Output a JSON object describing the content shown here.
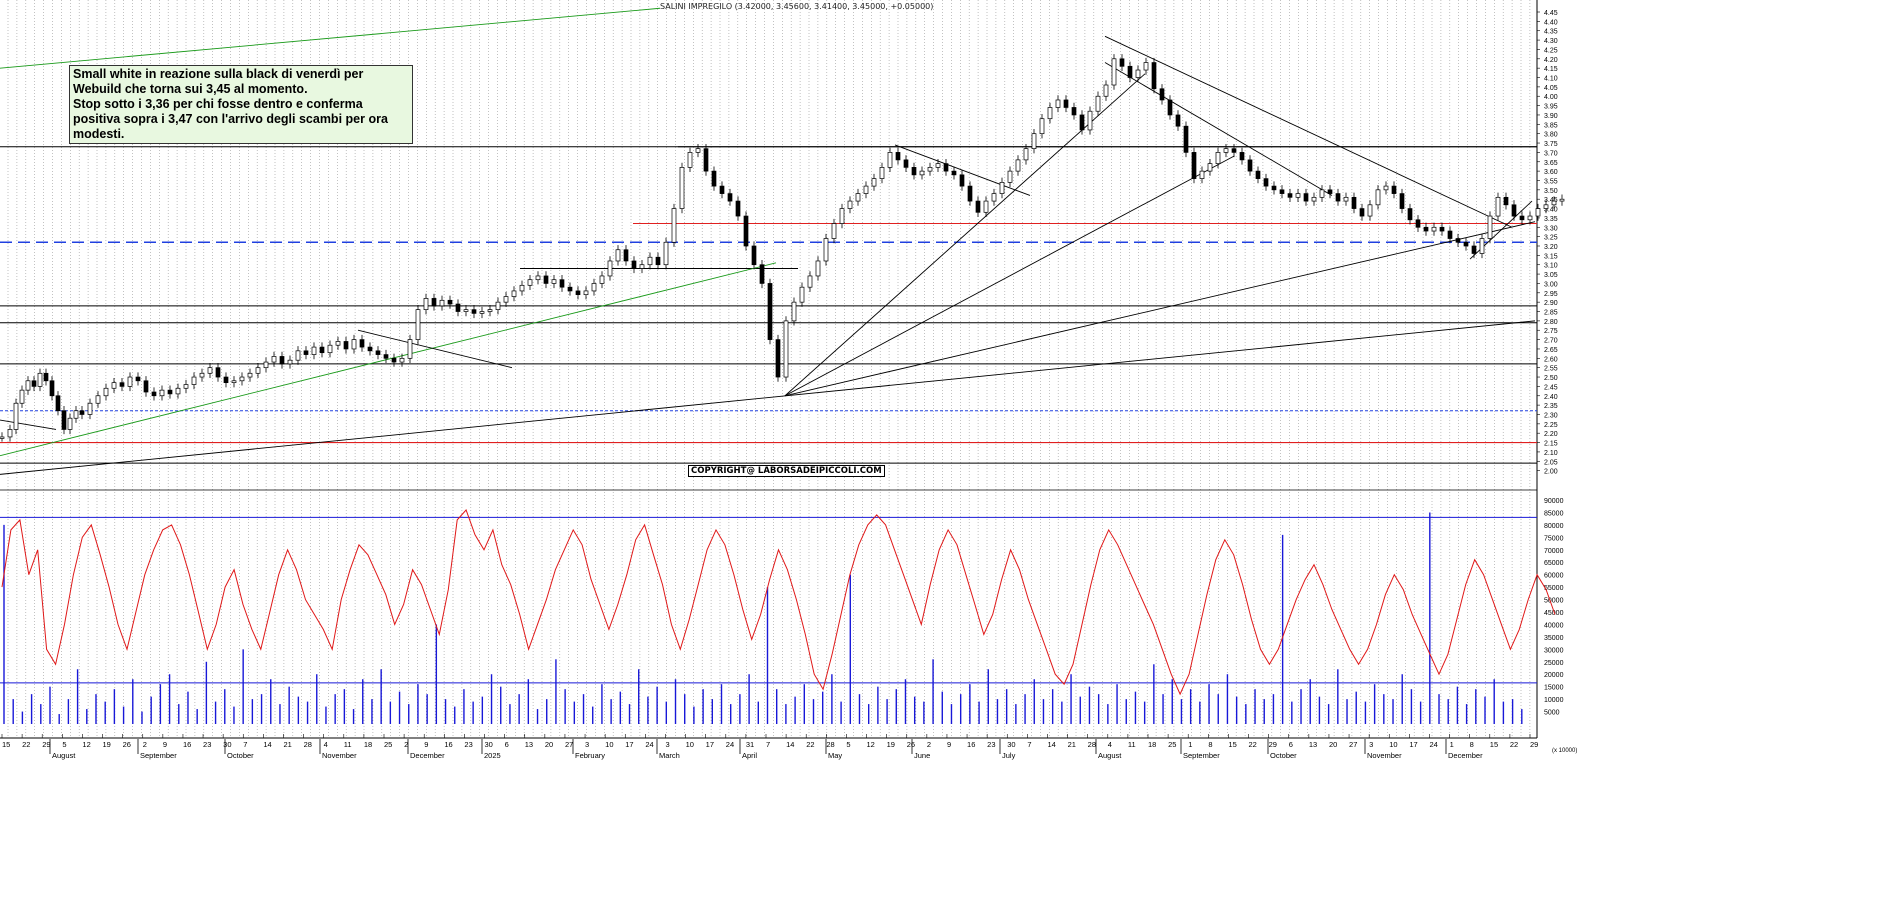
{
  "title": "SALINI IMPREGILO (3.42000, 3.45600, 3.41400, 3.45000, +0.05000)",
  "note": {
    "lines": [
      "Small white in reazione sulla black di venerdì per Webuild che torna sui 3,45 al momento.",
      "Stop sotto i 3,36 per chi fosse dentro e  conferma positiva sopra i 3,47 con l'arrivo degli scambi per ora modesti."
    ]
  },
  "copyright": "COPYRIGHT@ LABORSADEIPICCOLI.COM",
  "colors": {
    "candle_body": "#000000",
    "grid": "#9a9a9a",
    "green_trend": "#1a9a1a",
    "red_level": "#e02020",
    "blue_level": "#2040e0",
    "oscillator": "#e01818",
    "volume": "#1818d8",
    "background": "#ffffff"
  },
  "chart_data": [
    {
      "type": "candlestick",
      "ylim": [
        1.95,
        4.45
      ],
      "y_ticks": [
        "4.45",
        "4.40",
        "4.35",
        "4.30",
        "4.25",
        "4.20",
        "4.15",
        "4.10",
        "4.05",
        "4.00",
        "3.95",
        "3.90",
        "3.85",
        "3.80",
        "3.75",
        "3.70",
        "3.65",
        "3.60",
        "3.55",
        "3.50",
        "3.45",
        "3.40",
        "3.35",
        "3.30",
        "3.25",
        "3.20",
        "3.15",
        "3.10",
        "3.05",
        "3.00",
        "2.95",
        "2.90",
        "2.85",
        "2.80",
        "2.75",
        "2.70",
        "2.65",
        "2.60",
        "2.55",
        "2.50",
        "2.45",
        "2.40",
        "2.35",
        "2.30",
        "2.25",
        "2.20",
        "2.15",
        "2.10",
        "2.05",
        "2.00"
      ],
      "price_path": [
        [
          0,
          2.18
        ],
        [
          8,
          2.22
        ],
        [
          14,
          2.36
        ],
        [
          20,
          2.43
        ],
        [
          26,
          2.48
        ],
        [
          32,
          2.45
        ],
        [
          38,
          2.52
        ],
        [
          44,
          2.48
        ],
        [
          50,
          2.4
        ],
        [
          56,
          2.32
        ],
        [
          62,
          2.22
        ],
        [
          68,
          2.28
        ],
        [
          74,
          2.32
        ],
        [
          80,
          2.3
        ],
        [
          88,
          2.36
        ],
        [
          96,
          2.4
        ],
        [
          104,
          2.44
        ],
        [
          112,
          2.47
        ],
        [
          120,
          2.45
        ],
        [
          128,
          2.5
        ],
        [
          136,
          2.48
        ],
        [
          144,
          2.42
        ],
        [
          152,
          2.4
        ],
        [
          160,
          2.43
        ],
        [
          168,
          2.41
        ],
        [
          176,
          2.44
        ],
        [
          184,
          2.46
        ],
        [
          192,
          2.5
        ],
        [
          200,
          2.52
        ],
        [
          208,
          2.55
        ],
        [
          216,
          2.5
        ],
        [
          224,
          2.47
        ],
        [
          232,
          2.48
        ],
        [
          240,
          2.5
        ],
        [
          248,
          2.52
        ],
        [
          256,
          2.55
        ],
        [
          264,
          2.58
        ],
        [
          272,
          2.61
        ],
        [
          280,
          2.57
        ],
        [
          288,
          2.59
        ],
        [
          296,
          2.64
        ],
        [
          304,
          2.62
        ],
        [
          312,
          2.66
        ],
        [
          320,
          2.63
        ],
        [
          328,
          2.67
        ],
        [
          336,
          2.69
        ],
        [
          344,
          2.65
        ],
        [
          352,
          2.7
        ],
        [
          360,
          2.66
        ],
        [
          368,
          2.64
        ],
        [
          376,
          2.62
        ],
        [
          384,
          2.6
        ],
        [
          392,
          2.58
        ],
        [
          400,
          2.6
        ],
        [
          408,
          2.7
        ],
        [
          416,
          2.86
        ],
        [
          424,
          2.92
        ],
        [
          432,
          2.88
        ],
        [
          440,
          2.91
        ],
        [
          448,
          2.89
        ],
        [
          456,
          2.85
        ],
        [
          464,
          2.86
        ],
        [
          472,
          2.84
        ],
        [
          480,
          2.85
        ],
        [
          488,
          2.86
        ],
        [
          496,
          2.9
        ],
        [
          504,
          2.93
        ],
        [
          512,
          2.96
        ],
        [
          520,
          2.99
        ],
        [
          528,
          3.02
        ],
        [
          536,
          3.04
        ],
        [
          544,
          3.0
        ],
        [
          552,
          3.02
        ],
        [
          560,
          2.98
        ],
        [
          568,
          2.96
        ],
        [
          576,
          2.94
        ],
        [
          584,
          2.96
        ],
        [
          592,
          3.0
        ],
        [
          600,
          3.04
        ],
        [
          608,
          3.12
        ],
        [
          616,
          3.18
        ],
        [
          624,
          3.12
        ],
        [
          632,
          3.08
        ],
        [
          640,
          3.1
        ],
        [
          648,
          3.14
        ],
        [
          656,
          3.1
        ],
        [
          664,
          3.22
        ],
        [
          672,
          3.4
        ],
        [
          680,
          3.62
        ],
        [
          688,
          3.7
        ],
        [
          696,
          3.72
        ],
        [
          704,
          3.6
        ],
        [
          712,
          3.52
        ],
        [
          720,
          3.48
        ],
        [
          728,
          3.44
        ],
        [
          736,
          3.36
        ],
        [
          744,
          3.2
        ],
        [
          752,
          3.1
        ],
        [
          760,
          3.0
        ],
        [
          768,
          2.7
        ],
        [
          776,
          2.5
        ],
        [
          784,
          2.8
        ],
        [
          792,
          2.9
        ],
        [
          800,
          2.98
        ],
        [
          808,
          3.04
        ],
        [
          816,
          3.12
        ],
        [
          824,
          3.24
        ],
        [
          832,
          3.32
        ],
        [
          840,
          3.4
        ],
        [
          848,
          3.44
        ],
        [
          856,
          3.48
        ],
        [
          864,
          3.52
        ],
        [
          872,
          3.56
        ],
        [
          880,
          3.62
        ],
        [
          888,
          3.7
        ],
        [
          896,
          3.66
        ],
        [
          904,
          3.62
        ],
        [
          912,
          3.58
        ],
        [
          920,
          3.6
        ],
        [
          928,
          3.62
        ],
        [
          936,
          3.64
        ],
        [
          944,
          3.6
        ],
        [
          952,
          3.58
        ],
        [
          960,
          3.52
        ],
        [
          968,
          3.44
        ],
        [
          976,
          3.38
        ],
        [
          984,
          3.44
        ],
        [
          992,
          3.48
        ],
        [
          1000,
          3.54
        ],
        [
          1008,
          3.6
        ],
        [
          1016,
          3.66
        ],
        [
          1024,
          3.72
        ],
        [
          1032,
          3.8
        ],
        [
          1040,
          3.88
        ],
        [
          1048,
          3.94
        ],
        [
          1056,
          3.98
        ],
        [
          1064,
          3.94
        ],
        [
          1072,
          3.9
        ],
        [
          1080,
          3.82
        ],
        [
          1088,
          3.92
        ],
        [
          1096,
          4.0
        ],
        [
          1104,
          4.06
        ],
        [
          1112,
          4.2
        ],
        [
          1120,
          4.16
        ],
        [
          1128,
          4.1
        ],
        [
          1136,
          4.14
        ],
        [
          1144,
          4.18
        ],
        [
          1152,
          4.04
        ],
        [
          1160,
          3.98
        ],
        [
          1168,
          3.9
        ],
        [
          1176,
          3.84
        ],
        [
          1184,
          3.7
        ],
        [
          1192,
          3.56
        ],
        [
          1200,
          3.6
        ],
        [
          1208,
          3.64
        ],
        [
          1216,
          3.7
        ],
        [
          1224,
          3.72
        ],
        [
          1232,
          3.7
        ],
        [
          1240,
          3.66
        ],
        [
          1248,
          3.6
        ],
        [
          1256,
          3.56
        ],
        [
          1264,
          3.52
        ],
        [
          1272,
          3.5
        ],
        [
          1280,
          3.48
        ],
        [
          1288,
          3.46
        ],
        [
          1296,
          3.48
        ],
        [
          1304,
          3.44
        ],
        [
          1312,
          3.46
        ],
        [
          1320,
          3.5
        ],
        [
          1328,
          3.48
        ],
        [
          1336,
          3.44
        ],
        [
          1344,
          3.46
        ],
        [
          1352,
          3.4
        ],
        [
          1360,
          3.36
        ],
        [
          1368,
          3.42
        ],
        [
          1376,
          3.5
        ],
        [
          1384,
          3.52
        ],
        [
          1392,
          3.48
        ],
        [
          1400,
          3.4
        ],
        [
          1408,
          3.34
        ],
        [
          1416,
          3.3
        ],
        [
          1424,
          3.28
        ],
        [
          1432,
          3.3
        ],
        [
          1440,
          3.28
        ],
        [
          1448,
          3.24
        ],
        [
          1456,
          3.22
        ],
        [
          1464,
          3.2
        ],
        [
          1472,
          3.16
        ],
        [
          1480,
          3.24
        ],
        [
          1488,
          3.36
        ],
        [
          1496,
          3.46
        ],
        [
          1504,
          3.42
        ],
        [
          1512,
          3.36
        ],
        [
          1520,
          3.34
        ],
        [
          1528,
          3.36
        ],
        [
          1536,
          3.4
        ],
        [
          1544,
          3.42
        ],
        [
          1552,
          3.44
        ],
        [
          1560,
          3.45
        ]
      ]
    },
    {
      "type": "line+bar",
      "series": [
        {
          "name": "oscillator"
        },
        {
          "name": "volume"
        }
      ],
      "ylim": [
        0,
        90000
      ],
      "y_ticks": [
        "90000",
        "85000",
        "80000",
        "75000",
        "70000",
        "65000",
        "60000",
        "55000",
        "50000",
        "45000",
        "40000",
        "35000",
        "30000",
        "25000",
        "20000",
        "15000",
        "10000",
        "5000"
      ],
      "y_unit": "(x 10000)",
      "oscillator": [
        55,
        78,
        82,
        60,
        70,
        30,
        24,
        40,
        60,
        75,
        80,
        68,
        55,
        40,
        30,
        45,
        60,
        70,
        78,
        80,
        72,
        60,
        45,
        30,
        40,
        55,
        62,
        48,
        38,
        30,
        45,
        60,
        70,
        62,
        50,
        44,
        38,
        30,
        50,
        62,
        72,
        68,
        60,
        52,
        40,
        48,
        62,
        56,
        46,
        36,
        54,
        82,
        86,
        76,
        70,
        78,
        64,
        56,
        44,
        30,
        40,
        50,
        62,
        70,
        78,
        72,
        58,
        48,
        38,
        48,
        60,
        74,
        80,
        68,
        56,
        40,
        30,
        42,
        56,
        70,
        78,
        72,
        60,
        46,
        34,
        44,
        58,
        70,
        62,
        50,
        36,
        20,
        14,
        28,
        44,
        60,
        72,
        80,
        84,
        80,
        70,
        60,
        50,
        40,
        56,
        70,
        78,
        72,
        60,
        48,
        36,
        44,
        58,
        70,
        62,
        50,
        40,
        30,
        20,
        16,
        24,
        40,
        56,
        70,
        78,
        72,
        64,
        56,
        48,
        40,
        30,
        20,
        12,
        20,
        36,
        52,
        66,
        74,
        68,
        56,
        42,
        30,
        24,
        30,
        40,
        50,
        58,
        64,
        56,
        46,
        38,
        30,
        24,
        30,
        40,
        52,
        60,
        54,
        44,
        36,
        28,
        20,
        28,
        42,
        56,
        66,
        60,
        50,
        40,
        30,
        38,
        50,
        60,
        54,
        44
      ],
      "volume": [
        80,
        10,
        5,
        12,
        8,
        15,
        4,
        10,
        22,
        6,
        12,
        9,
        14,
        7,
        18,
        5,
        11,
        16,
        20,
        8,
        13,
        6,
        25,
        9,
        14,
        7,
        30,
        10,
        12,
        18,
        8,
        15,
        11,
        9,
        20,
        7,
        12,
        14,
        6,
        18,
        10,
        22,
        9,
        13,
        8,
        16,
        12,
        40,
        10,
        7,
        14,
        9,
        11,
        20,
        15,
        8,
        12,
        18,
        6,
        10,
        26,
        14,
        9,
        12,
        7,
        16,
        10,
        13,
        8,
        22,
        11,
        15,
        9,
        18,
        12,
        7,
        14,
        10,
        16,
        8,
        12,
        20,
        9,
        55,
        14,
        8,
        11,
        16,
        10,
        13,
        20,
        9,
        60,
        12,
        8,
        15,
        10,
        14,
        18,
        11,
        9,
        26,
        13,
        8,
        12,
        16,
        9,
        22,
        10,
        14,
        8,
        12,
        18,
        10,
        14,
        9,
        20,
        11,
        15,
        12,
        8,
        16,
        10,
        13,
        9,
        24,
        12,
        18,
        10,
        14,
        9,
        16,
        12,
        20,
        11,
        8,
        14,
        10,
        12,
        76,
        9,
        14,
        18,
        11,
        8,
        22,
        10,
        13,
        9,
        16,
        12,
        10,
        20,
        14,
        9,
        85,
        12,
        10,
        15,
        8,
        14,
        11,
        18,
        9,
        10,
        6
      ]
    }
  ],
  "x_axis": {
    "days": [
      "15",
      "22",
      "29",
      "5",
      "12",
      "19",
      "26",
      "2",
      "9",
      "16",
      "23",
      "30",
      "7",
      "14",
      "21",
      "28",
      "4",
      "11",
      "18",
      "25",
      "2",
      "9",
      "16",
      "23",
      "30",
      "6",
      "13",
      "20",
      "27",
      "3",
      "10",
      "17",
      "24",
      "3",
      "10",
      "17",
      "24",
      "31",
      "7",
      "14",
      "22",
      "28",
      "5",
      "12",
      "19",
      "26",
      "2",
      "9",
      "16",
      "23",
      "30",
      "7",
      "14",
      "21",
      "28",
      "4",
      "11",
      "18",
      "25",
      "1",
      "8",
      "15",
      "22",
      "29",
      "6",
      "13",
      "20",
      "27",
      "3",
      "10",
      "17",
      "24",
      "1",
      "8",
      "15",
      "22",
      "29"
    ],
    "months": [
      "August",
      "September",
      "October",
      "November",
      "December",
      "2025",
      "February",
      "March",
      "April",
      "May",
      "June",
      "July",
      "August",
      "September",
      "October",
      "November",
      "December"
    ]
  }
}
